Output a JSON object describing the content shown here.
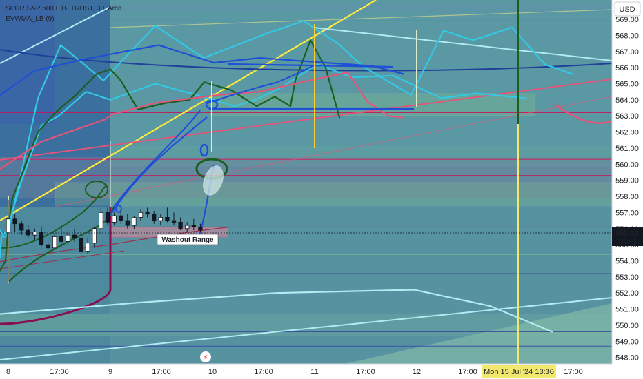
{
  "header": {
    "symbol_line": "SPDR S&P 500 ETF TRUST, 30, Arca",
    "indicator_line": "EVWMA_LB (9)"
  },
  "currency": "USD",
  "price": {
    "last": "555.86",
    "countdown": "10:48",
    "color": "#131722"
  },
  "crosshair": {
    "time_label": "Mon 15 Jul '24   13:30",
    "accent": "#f2e86d"
  },
  "annotation": {
    "label": "Washout Range"
  },
  "colors": {
    "bull": "#ffffff",
    "bear": "#131722",
    "ribbon_cyan": "#31c9e6",
    "ribbon_green": "#1b5e20",
    "drawing_blue": "#1e4fd6",
    "trend_yellow": "#ffeb3b",
    "trend_pink": "#e2557a",
    "support_cyan": "#b2ebf2"
  },
  "chart_data": {
    "type": "candlestick",
    "title": "SPDR S&P 500 ETF TRUST, 30, Arca",
    "ylabel": "USD",
    "ylim": [
      547.6,
      570.2
    ],
    "grid": false,
    "y_ticks": [
      "548.00",
      "549.00",
      "550.00",
      "551.00",
      "552.00",
      "553.00",
      "554.00",
      "555.00",
      "556.00",
      "557.00",
      "558.00",
      "559.00",
      "560.00",
      "561.00",
      "562.00",
      "563.00",
      "564.00",
      "565.00",
      "566.00",
      "567.00",
      "568.00",
      "569.00"
    ],
    "x_ticks": [
      "8",
      "17:00",
      "9",
      "17:00",
      "10",
      "17:00",
      "11",
      "17:00",
      "12",
      "17:00",
      "17:00"
    ],
    "candles": [
      {
        "o": 555.8,
        "h": 557.8,
        "l": 552.7,
        "c": 556.6
      },
      {
        "o": 556.6,
        "h": 556.9,
        "l": 555.8,
        "c": 556.3
      },
      {
        "o": 556.3,
        "h": 556.5,
        "l": 555.6,
        "c": 555.9
      },
      {
        "o": 555.9,
        "h": 556.2,
        "l": 555.4,
        "c": 555.6
      },
      {
        "o": 555.6,
        "h": 556.0,
        "l": 555.3,
        "c": 555.8
      },
      {
        "o": 555.8,
        "h": 556.1,
        "l": 554.9,
        "c": 555.0
      },
      {
        "o": 555.0,
        "h": 555.3,
        "l": 554.6,
        "c": 554.8
      },
      {
        "o": 554.8,
        "h": 555.7,
        "l": 554.7,
        "c": 555.5
      },
      {
        "o": 555.5,
        "h": 556.2,
        "l": 554.9,
        "c": 555.2
      },
      {
        "o": 555.2,
        "h": 555.9,
        "l": 555.0,
        "c": 555.6
      },
      {
        "o": 555.6,
        "h": 556.0,
        "l": 555.2,
        "c": 555.4
      },
      {
        "o": 555.4,
        "h": 555.6,
        "l": 554.3,
        "c": 554.6
      },
      {
        "o": 554.6,
        "h": 555.4,
        "l": 554.4,
        "c": 555.1
      },
      {
        "o": 555.1,
        "h": 556.1,
        "l": 554.8,
        "c": 556.0
      },
      {
        "o": 556.0,
        "h": 557.3,
        "l": 555.8,
        "c": 557.0
      },
      {
        "o": 557.0,
        "h": 557.3,
        "l": 556.2,
        "c": 556.4
      },
      {
        "o": 556.4,
        "h": 557.0,
        "l": 556.2,
        "c": 556.8
      },
      {
        "o": 556.8,
        "h": 557.1,
        "l": 556.3,
        "c": 556.5
      },
      {
        "o": 556.5,
        "h": 556.9,
        "l": 556.0,
        "c": 556.2
      },
      {
        "o": 556.2,
        "h": 556.8,
        "l": 556.0,
        "c": 556.7
      },
      {
        "o": 556.7,
        "h": 557.2,
        "l": 556.5,
        "c": 557.0
      },
      {
        "o": 557.0,
        "h": 557.3,
        "l": 556.7,
        "c": 556.9
      },
      {
        "o": 556.9,
        "h": 557.1,
        "l": 556.3,
        "c": 556.5
      },
      {
        "o": 556.5,
        "h": 556.9,
        "l": 556.2,
        "c": 556.7
      },
      {
        "o": 556.7,
        "h": 557.3,
        "l": 556.4,
        "c": 556.5
      },
      {
        "o": 556.5,
        "h": 557.0,
        "l": 556.2,
        "c": 556.4
      },
      {
        "o": 556.4,
        "h": 556.7,
        "l": 555.9,
        "c": 556.0
      },
      {
        "o": 556.0,
        "h": 556.4,
        "l": 555.8,
        "c": 556.2
      },
      {
        "o": 556.2,
        "h": 556.6,
        "l": 555.9,
        "c": 556.1
      },
      {
        "o": 556.1,
        "h": 556.3,
        "l": 555.8,
        "c": 555.9
      }
    ],
    "series": [
      {
        "color": "#31c9e6",
        "values": [
          [
            0,
            555.9
          ],
          [
            4,
            555.6
          ],
          [
            8,
            555.8
          ],
          [
            11,
            555.3
          ],
          [
            15,
            556.4
          ],
          [
            30,
            559.3
          ],
          [
            55,
            564.1
          ],
          [
            88,
            567.4
          ],
          [
            150,
            565.2
          ],
          [
            225,
            568.6
          ],
          [
            295,
            566.6
          ],
          [
            385,
            568.1
          ],
          [
            440,
            568.9
          ],
          [
            490,
            567.5
          ],
          [
            525,
            566.1
          ],
          [
            596,
            564.3
          ],
          [
            643,
            568.3
          ],
          [
            686,
            567.7
          ],
          [
            742,
            568.5
          ],
          [
            790,
            566.2
          ],
          [
            830,
            565.6
          ]
        ]
      },
      {
        "color": "#31c9e6",
        "values": [
          [
            0,
            554.2
          ],
          [
            2,
            555.5
          ],
          [
            8,
            555.5
          ],
          [
            11,
            555.5
          ],
          [
            14,
            556.5
          ],
          [
            30,
            558.8
          ],
          [
            60,
            562.4
          ],
          [
            85,
            563.0
          ],
          [
            125,
            564.5
          ],
          [
            160,
            564.0
          ],
          [
            225,
            565.0
          ],
          [
            285,
            564.3
          ],
          [
            340,
            563.6
          ],
          [
            370,
            564.0
          ],
          [
            405,
            564.7
          ],
          [
            460,
            566.2
          ],
          [
            510,
            565.4
          ],
          [
            570,
            565.5
          ],
          [
            640,
            564.1
          ],
          [
            690,
            564.4
          ],
          [
            762,
            564.1
          ]
        ]
      },
      {
        "color": "#1b5e20",
        "values": [
          [
            0,
            553.4
          ],
          [
            4,
            553.7
          ],
          [
            8,
            554.0
          ],
          [
            12,
            556.2
          ],
          [
            18,
            557.9
          ],
          [
            30,
            559.2
          ],
          [
            55,
            562.0
          ],
          [
            80,
            563.2
          ],
          [
            110,
            564.3
          ],
          [
            140,
            565.6
          ],
          [
            160,
            565.9
          ],
          [
            175,
            565.2
          ],
          [
            200,
            563.4
          ],
          [
            240,
            563.8
          ],
          [
            275,
            564.0
          ],
          [
            296,
            565.1
          ],
          [
            335,
            564.6
          ],
          [
            372,
            563.6
          ],
          [
            398,
            564.2
          ],
          [
            421,
            563.6
          ],
          [
            428,
            565.2
          ],
          [
            450,
            567.7
          ],
          [
            472,
            566.0
          ],
          [
            492,
            562.9
          ]
        ]
      },
      {
        "color": "#e2557a",
        "values": [
          [
            0,
            559.7
          ],
          [
            60,
            561.4
          ],
          [
            153,
            562.8
          ],
          [
            163,
            563.1
          ],
          [
            225,
            563.8
          ],
          [
            317,
            564.3
          ],
          [
            375,
            564.5
          ],
          [
            438,
            565.1
          ],
          [
            504,
            565.7
          ],
          [
            532,
            563.9
          ],
          [
            563,
            563.0
          ],
          [
            583,
            562.9
          ]
        ]
      },
      {
        "color": "#1e4fd6",
        "values": [
          [
            0,
            564.3
          ],
          [
            50,
            565.8
          ],
          [
            120,
            566.5
          ],
          [
            230,
            567.4
          ],
          [
            310,
            566.3
          ],
          [
            376,
            566.6
          ],
          [
            540,
            566.1
          ],
          [
            585,
            565.6
          ]
        ]
      },
      {
        "color": "#b2ebf2",
        "values": [
          [
            0,
            550.7
          ],
          [
            200,
            551.4
          ],
          [
            400,
            552.0
          ],
          [
            600,
            552.2
          ],
          [
            710,
            551.2
          ],
          [
            800,
            549.6
          ]
        ]
      }
    ],
    "levels": [
      568.9,
      563.2,
      560.3,
      559.3,
      556.1,
      554.4,
      553.2,
      549.6,
      548.7
    ]
  }
}
